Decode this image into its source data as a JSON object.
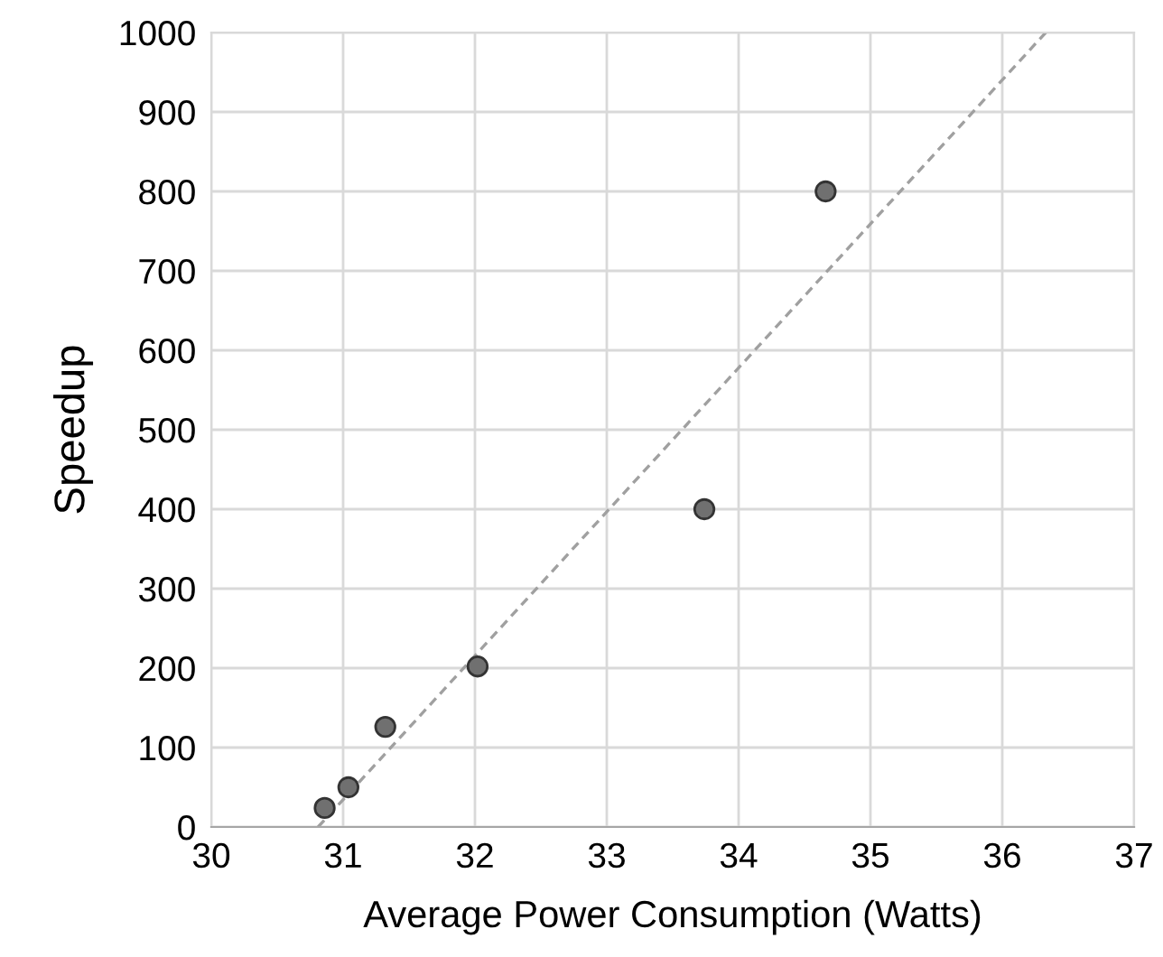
{
  "chart_data": {
    "type": "scatter",
    "xlabel": "Average Power Consumption (Watts)",
    "ylabel": "Speedup",
    "series": [
      {
        "color": "#707070",
        "marker": "circle",
        "x": [
          30.86,
          31.04,
          31.32,
          32.02,
          33.74,
          34.66
        ],
        "values": [
          24,
          50,
          126,
          202,
          400,
          800
        ]
      },
      {
        "type": "line",
        "color": "#a0a0a0",
        "line_style": "dashed",
        "marker": "none",
        "x": [
          30.81,
          36.33
        ],
        "values": [
          0,
          1000
        ]
      }
    ],
    "xlim": [
      30,
      37
    ],
    "xticks": [
      30,
      31,
      32,
      33,
      34,
      35,
      36,
      37
    ],
    "ylim": [
      0,
      1000
    ],
    "yticks": [
      0,
      100,
      200,
      300,
      400,
      500,
      600,
      700,
      800,
      900,
      1000
    ],
    "grid": true,
    "legend": false
  }
}
